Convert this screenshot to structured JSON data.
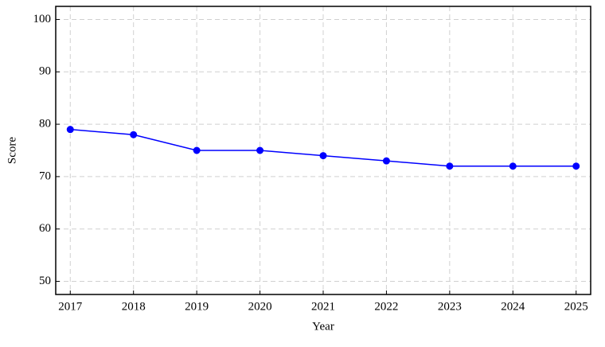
{
  "chart_data": {
    "type": "line",
    "x_label": "Year",
    "y_label": "Score",
    "x": [
      2017,
      2018,
      2019,
      2020,
      2021,
      2022,
      2023,
      2024,
      2025
    ],
    "series": [
      {
        "color": "#0000ff",
        "values": [
          79,
          78,
          75,
          75,
          74,
          73,
          72,
          72,
          72
        ]
      }
    ],
    "xlim": [
      2016.77,
      2025.23
    ],
    "xticks": [
      2017,
      2018,
      2019,
      2020,
      2021,
      2022,
      2023,
      2024,
      2025
    ],
    "ylim": [
      47.5,
      102.5
    ],
    "yticks": [
      50,
      60,
      70,
      80,
      90,
      100
    ],
    "grid": true
  }
}
